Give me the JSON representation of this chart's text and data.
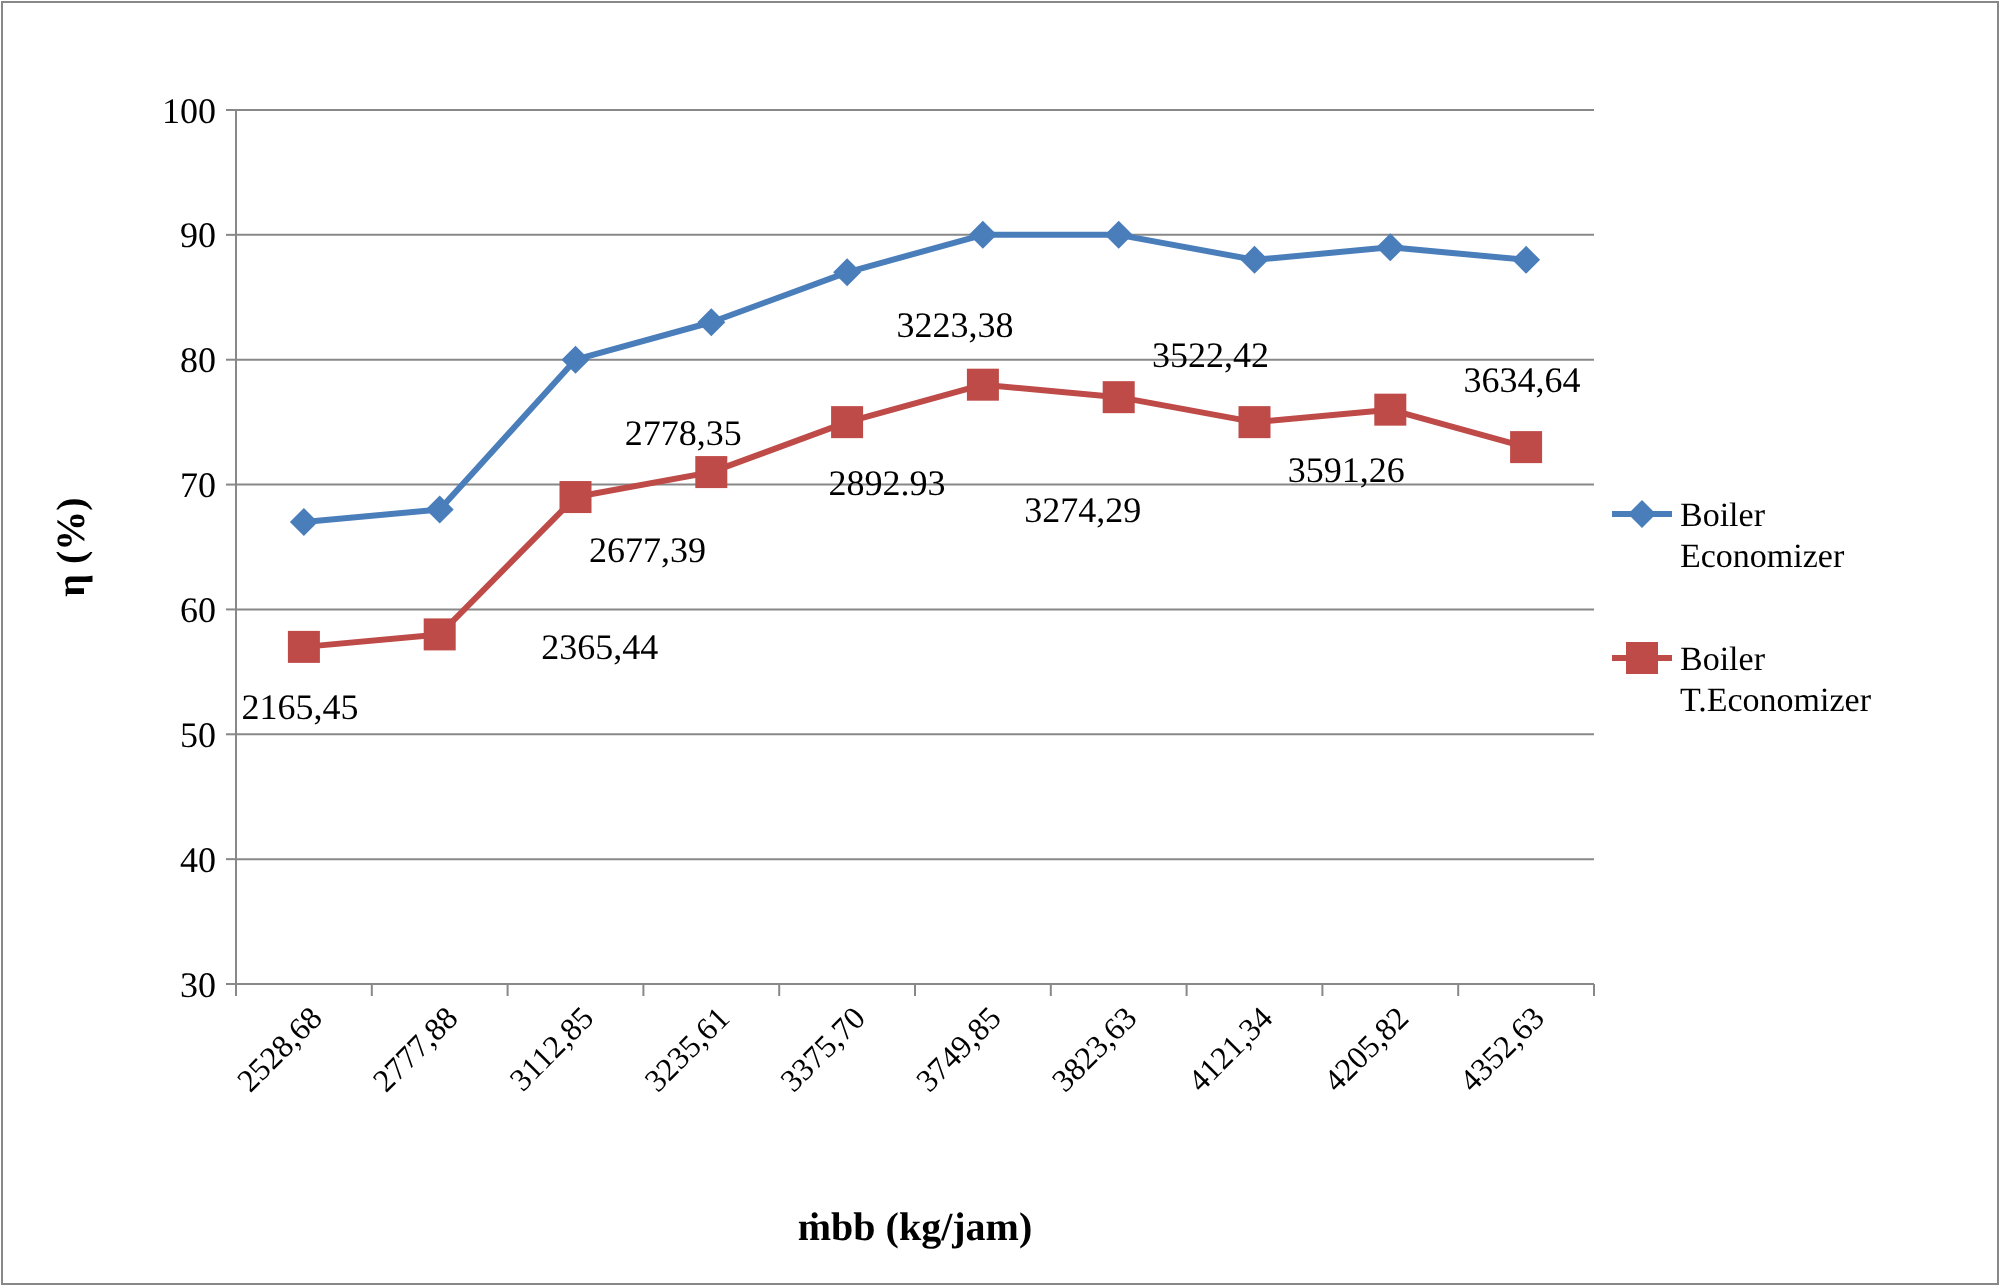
{
  "chart_data": {
    "type": "line",
    "xlabel": "ṁbb (kg/jam)",
    "ylabel": "η (%)",
    "categories": [
      "2528,68",
      "2777,88",
      "3112,85",
      "3235,61",
      "3375,70",
      "3749,85",
      "3823,63",
      "4121,34",
      "4205,82",
      "4352,63"
    ],
    "series": [
      {
        "name": "Boiler Economizer",
        "color": "#4a7ebb",
        "marker": "diamond",
        "values": [
          67,
          68,
          80,
          83,
          87,
          90,
          90,
          88,
          89,
          88
        ]
      },
      {
        "name": "Boiler T.Economizer",
        "color": "#be4b48",
        "marker": "square",
        "values": [
          57,
          58,
          69,
          71,
          75,
          78,
          77,
          75,
          76,
          73
        ]
      }
    ],
    "ylim": [
      30,
      100
    ],
    "yticks": [
      30,
      40,
      50,
      60,
      70,
      80,
      90,
      100
    ],
    "grid": "y",
    "legend": "right",
    "annotations": [
      {
        "text": "2165,45",
        "x": "2528,68",
        "y": 57
      },
      {
        "text": "2365,44",
        "x": "2777,88",
        "y": 58
      },
      {
        "text": "2677,39",
        "x": "3112,85",
        "y": 69
      },
      {
        "text": "2778,35",
        "x": "3235,61",
        "y": 71
      },
      {
        "text": "2892.93",
        "x": "3375,70",
        "y": 75
      },
      {
        "text": "3223,38",
        "x": "3749,85",
        "y": 78
      },
      {
        "text": "3274,29",
        "x": "3823,63",
        "y": 77
      },
      {
        "text": "3522,42",
        "x": "4121,34",
        "y": 75
      },
      {
        "text": "3591,26",
        "x": "4205,82",
        "y": 76
      },
      {
        "text": "3634,64",
        "x": "4352,63",
        "y": 73
      }
    ]
  }
}
